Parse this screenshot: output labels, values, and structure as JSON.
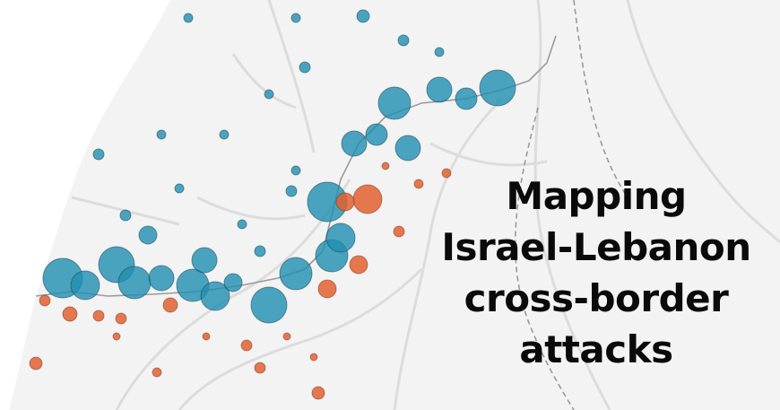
{
  "title": {
    "line1": "Mapping",
    "line2": "Israel-Lebanon",
    "line3": "cross-border",
    "line4": "attacks"
  },
  "colors": {
    "background": "#f3f3f3",
    "sea": "#ffffff",
    "roads": "#dcdcdc",
    "border": "#9a9a9a",
    "lebanon_attacks": "#1f8fb0",
    "israel_attacks": "#e06030"
  }
}
